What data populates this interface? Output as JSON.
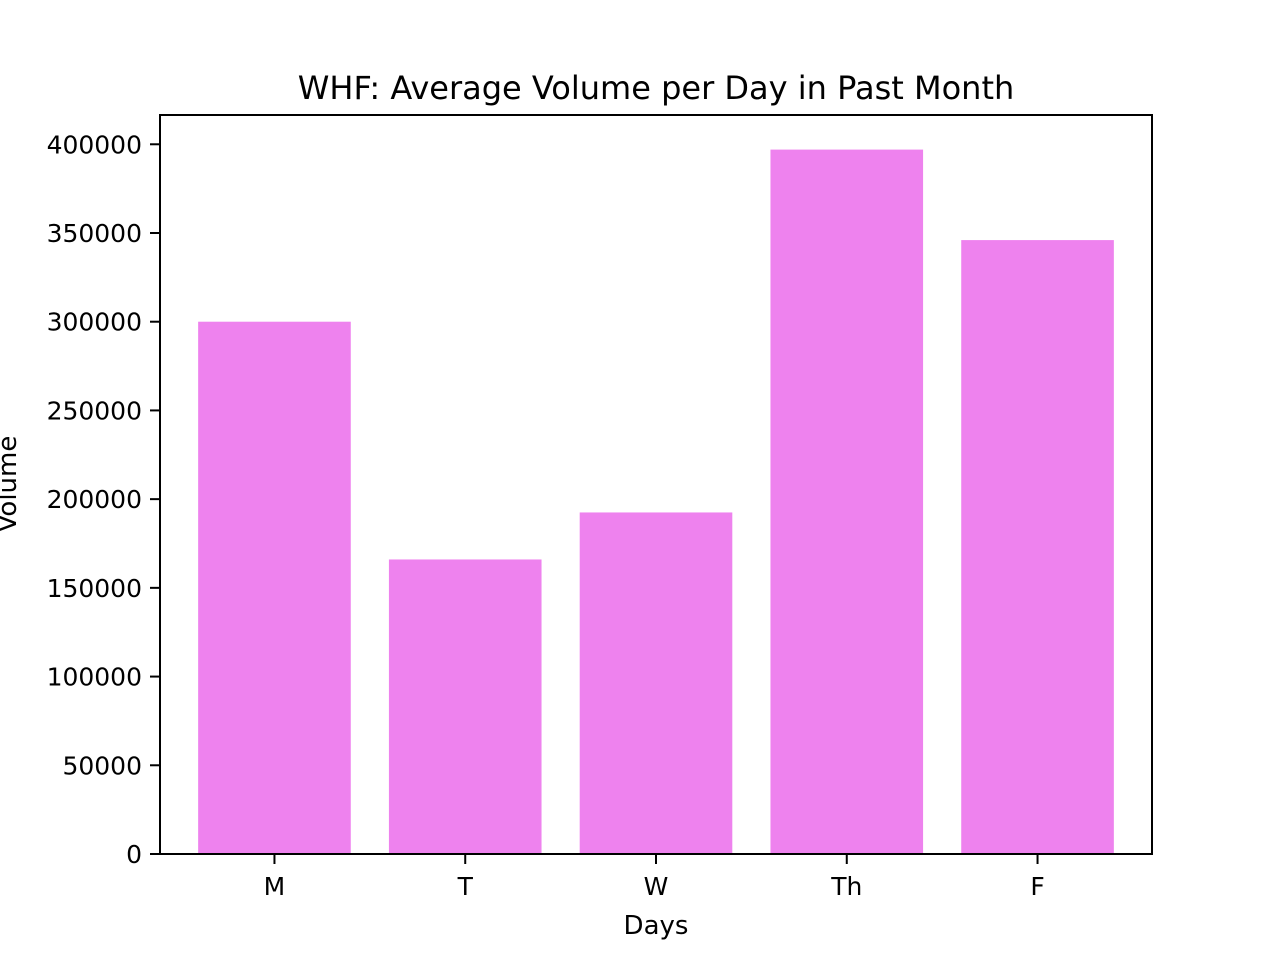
{
  "chart_data": {
    "type": "bar",
    "title": "WHF: Average Volume per Day in Past Month",
    "xlabel": "Days",
    "ylabel": "Volume",
    "categories": [
      "M",
      "T",
      "W",
      "Th",
      "F"
    ],
    "values": [
      300000,
      166000,
      192500,
      397000,
      346000
    ],
    "ylim": [
      0,
      416500
    ],
    "yticks": [
      0,
      50000,
      100000,
      150000,
      200000,
      250000,
      300000,
      350000,
      400000
    ],
    "ytick_labels": [
      "0",
      "50000",
      "100000",
      "150000",
      "200000",
      "250000",
      "300000",
      "350000",
      "400000"
    ],
    "bar_color": "#EE82EE",
    "grid": false,
    "legend": "none"
  }
}
